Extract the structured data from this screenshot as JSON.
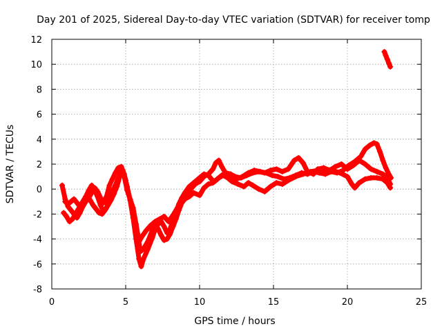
{
  "chart_data": {
    "type": "line",
    "title": "Day 201 of 2025, Sidereal Day-to-day VTEC variation (SDTVAR) for receiver tomp",
    "xlabel": "GPS time / hours",
    "ylabel": "SDTVAR / TECUs",
    "xlim": [
      0,
      25
    ],
    "ylim": [
      -8,
      12
    ],
    "xticks": [
      0,
      5,
      10,
      15,
      20,
      25
    ],
    "yticks": [
      -8,
      -6,
      -4,
      -2,
      0,
      2,
      4,
      6,
      8,
      10,
      12
    ],
    "grid": true,
    "marker": "+",
    "color": "#ff0000",
    "series": [
      {
        "name": "trace-1",
        "points": [
          [
            0.7,
            0.3
          ],
          [
            0.9,
            -0.8
          ],
          [
            1.1,
            -1.4
          ],
          [
            1.3,
            -1.7
          ],
          [
            1.5,
            -2.0
          ],
          [
            1.7,
            -2.3
          ],
          [
            1.9,
            -1.9
          ],
          [
            2.1,
            -1.4
          ],
          [
            2.3,
            -1.0
          ],
          [
            2.5,
            -0.7
          ],
          [
            2.7,
            -0.3
          ],
          [
            2.9,
            0.1
          ],
          [
            3.1,
            -0.2
          ],
          [
            3.3,
            -0.7
          ],
          [
            3.5,
            -1.1
          ],
          [
            3.7,
            -0.6
          ],
          [
            3.9,
            0.3
          ],
          [
            4.1,
            0.8
          ],
          [
            4.3,
            1.3
          ],
          [
            4.5,
            1.7
          ],
          [
            4.7,
            1.8
          ],
          [
            4.9,
            1.2
          ],
          [
            5.1,
            0.2
          ],
          [
            5.3,
            -0.9
          ],
          [
            5.5,
            -2.3
          ],
          [
            5.7,
            -4.0
          ],
          [
            5.9,
            -5.6
          ],
          [
            6.05,
            -6.2
          ],
          [
            6.2,
            -5.6
          ],
          [
            6.5,
            -4.8
          ],
          [
            6.8,
            -3.9
          ],
          [
            7.0,
            -3.2
          ],
          [
            7.2,
            -2.8
          ],
          [
            7.4,
            -2.6
          ],
          [
            7.6,
            -3.0
          ],
          [
            7.8,
            -3.5
          ],
          [
            8.0,
            -3.2
          ],
          [
            8.2,
            -2.5
          ],
          [
            8.4,
            -1.8
          ],
          [
            8.6,
            -1.2
          ],
          [
            8.8,
            -0.7
          ],
          [
            9.0,
            -0.3
          ],
          [
            9.3,
            0.2
          ],
          [
            9.6,
            0.5
          ],
          [
            10.0,
            0.9
          ],
          [
            10.3,
            1.2
          ],
          [
            10.6,
            1.1
          ],
          [
            10.8,
            0.8
          ],
          [
            11.0,
            0.6
          ],
          [
            11.3,
            0.9
          ],
          [
            11.6,
            1.1
          ],
          [
            11.9,
            0.9
          ],
          [
            12.2,
            0.6
          ],
          [
            12.6,
            0.4
          ],
          [
            13.0,
            0.2
          ],
          [
            13.3,
            0.5
          ],
          [
            13.6,
            0.3
          ],
          [
            14.0,
            0.0
          ],
          [
            14.4,
            -0.2
          ],
          [
            14.8,
            0.2
          ],
          [
            15.2,
            0.5
          ],
          [
            15.6,
            0.4
          ],
          [
            16.0,
            0.7
          ],
          [
            16.5,
            1.0
          ],
          [
            17.0,
            1.2
          ],
          [
            17.5,
            1.4
          ],
          [
            18.0,
            1.5
          ],
          [
            18.5,
            1.6
          ],
          [
            19.0,
            1.5
          ],
          [
            19.5,
            1.3
          ],
          [
            20.0,
            1.0
          ],
          [
            20.3,
            0.4
          ],
          [
            20.5,
            0.1
          ],
          [
            20.8,
            0.5
          ],
          [
            21.2,
            0.8
          ],
          [
            21.6,
            0.9
          ],
          [
            22.0,
            0.9
          ],
          [
            22.4,
            0.8
          ],
          [
            22.7,
            0.5
          ],
          [
            22.9,
            0.1
          ]
        ]
      },
      {
        "name": "trace-2",
        "points": [
          [
            0.8,
            -1.9
          ],
          [
            1.0,
            -2.2
          ],
          [
            1.2,
            -2.6
          ],
          [
            1.4,
            -2.4
          ],
          [
            1.6,
            -2.0
          ],
          [
            1.8,
            -1.6
          ],
          [
            2.0,
            -1.2
          ],
          [
            2.2,
            -0.9
          ],
          [
            2.4,
            -0.5
          ],
          [
            2.6,
            -0.9
          ],
          [
            2.8,
            -1.3
          ],
          [
            3.0,
            -1.6
          ],
          [
            3.2,
            -1.9
          ],
          [
            3.4,
            -2.0
          ],
          [
            3.6,
            -1.7
          ],
          [
            3.8,
            -1.3
          ],
          [
            4.0,
            -0.9
          ],
          [
            4.2,
            -0.4
          ],
          [
            4.4,
            0.2
          ],
          [
            4.6,
            1.0
          ],
          [
            4.8,
            1.5
          ],
          [
            5.0,
            0.7
          ],
          [
            5.2,
            -0.4
          ],
          [
            5.4,
            -1.3
          ],
          [
            5.6,
            -2.4
          ],
          [
            5.8,
            -3.6
          ],
          [
            6.0,
            -5.0
          ],
          [
            6.2,
            -4.8
          ],
          [
            6.5,
            -4.2
          ],
          [
            6.8,
            -3.3
          ],
          [
            7.0,
            -2.9
          ],
          [
            7.2,
            -3.2
          ],
          [
            7.4,
            -3.7
          ],
          [
            7.6,
            -4.1
          ],
          [
            7.8,
            -4.0
          ],
          [
            8.0,
            -3.6
          ],
          [
            8.2,
            -3.0
          ],
          [
            8.4,
            -2.4
          ],
          [
            8.6,
            -1.7
          ],
          [
            8.8,
            -1.1
          ],
          [
            9.0,
            -0.8
          ],
          [
            9.3,
            -0.6
          ],
          [
            9.6,
            -0.3
          ],
          [
            10.0,
            -0.5
          ],
          [
            10.3,
            0.1
          ],
          [
            10.6,
            0.4
          ],
          [
            10.9,
            0.5
          ],
          [
            11.2,
            0.8
          ],
          [
            11.5,
            1.1
          ],
          [
            11.8,
            1.3
          ],
          [
            12.1,
            1.2
          ],
          [
            12.4,
            1.0
          ],
          [
            12.8,
            0.9
          ],
          [
            13.2,
            1.1
          ],
          [
            13.6,
            1.3
          ],
          [
            14.0,
            1.4
          ],
          [
            14.4,
            1.3
          ],
          [
            14.8,
            1.5
          ],
          [
            15.2,
            1.6
          ],
          [
            15.6,
            1.4
          ],
          [
            16.0,
            1.6
          ],
          [
            16.4,
            2.3
          ],
          [
            16.7,
            2.5
          ],
          [
            17.0,
            2.1
          ],
          [
            17.3,
            1.4
          ],
          [
            17.7,
            1.2
          ],
          [
            18.0,
            1.6
          ],
          [
            18.4,
            1.7
          ],
          [
            18.8,
            1.5
          ],
          [
            19.2,
            1.8
          ],
          [
            19.6,
            2.0
          ],
          [
            20.0,
            1.6
          ],
          [
            20.4,
            1.9
          ],
          [
            20.8,
            2.3
          ],
          [
            21.2,
            2.0
          ],
          [
            21.6,
            1.6
          ],
          [
            22.0,
            1.4
          ],
          [
            22.4,
            1.2
          ],
          [
            22.7,
            0.9
          ],
          [
            22.9,
            0.4
          ]
        ]
      },
      {
        "name": "trace-3",
        "points": [
          [
            0.9,
            -1.0
          ],
          [
            1.1,
            -1.2
          ],
          [
            1.3,
            -1.0
          ],
          [
            1.5,
            -0.8
          ],
          [
            1.7,
            -1.1
          ],
          [
            1.9,
            -1.4
          ],
          [
            2.1,
            -1.0
          ],
          [
            2.3,
            -0.6
          ],
          [
            2.5,
            -0.1
          ],
          [
            2.7,
            0.3
          ],
          [
            2.9,
            -0.1
          ],
          [
            3.1,
            -0.6
          ],
          [
            3.3,
            -1.3
          ],
          [
            3.5,
            -1.8
          ],
          [
            3.7,
            -1.5
          ],
          [
            3.9,
            -0.7
          ],
          [
            4.1,
            -0.2
          ],
          [
            4.3,
            0.3
          ],
          [
            4.5,
            0.9
          ],
          [
            4.7,
            1.4
          ],
          [
            4.9,
            1.0
          ],
          [
            5.1,
            -0.1
          ],
          [
            5.3,
            -0.8
          ],
          [
            5.5,
            -1.5
          ],
          [
            5.7,
            -2.8
          ],
          [
            5.9,
            -4.2
          ],
          [
            6.1,
            -3.8
          ],
          [
            6.4,
            -3.3
          ],
          [
            6.7,
            -2.9
          ],
          [
            7.0,
            -2.6
          ],
          [
            7.3,
            -2.4
          ],
          [
            7.6,
            -2.2
          ],
          [
            7.9,
            -2.6
          ],
          [
            8.2,
            -2.1
          ],
          [
            8.5,
            -1.5
          ],
          [
            8.8,
            -0.9
          ],
          [
            9.1,
            -0.4
          ],
          [
            9.4,
            0.0
          ],
          [
            9.7,
            0.4
          ],
          [
            10.0,
            0.6
          ],
          [
            10.3,
            1.0
          ],
          [
            10.6,
            1.2
          ],
          [
            10.9,
            1.6
          ],
          [
            11.1,
            2.1
          ],
          [
            11.3,
            2.3
          ],
          [
            11.5,
            1.8
          ],
          [
            11.8,
            1.2
          ],
          [
            12.1,
            0.9
          ],
          [
            12.5,
            0.8
          ],
          [
            12.9,
            1.0
          ],
          [
            13.3,
            1.3
          ],
          [
            13.7,
            1.5
          ],
          [
            14.1,
            1.4
          ],
          [
            14.5,
            1.3
          ],
          [
            14.9,
            1.1
          ],
          [
            15.3,
            1.0
          ],
          [
            15.7,
            0.8
          ],
          [
            16.1,
            0.9
          ],
          [
            16.5,
            1.1
          ],
          [
            16.9,
            1.3
          ],
          [
            17.3,
            1.2
          ],
          [
            17.7,
            1.4
          ],
          [
            18.1,
            1.3
          ],
          [
            18.5,
            1.2
          ],
          [
            18.9,
            1.4
          ],
          [
            19.3,
            1.3
          ],
          [
            19.7,
            1.5
          ],
          [
            20.1,
            1.9
          ],
          [
            20.5,
            2.2
          ],
          [
            20.9,
            2.6
          ],
          [
            21.2,
            3.2
          ],
          [
            21.5,
            3.5
          ],
          [
            21.8,
            3.7
          ],
          [
            22.0,
            3.6
          ],
          [
            22.2,
            3.0
          ],
          [
            22.4,
            2.3
          ],
          [
            22.6,
            1.7
          ],
          [
            22.8,
            1.2
          ],
          [
            22.95,
            0.9
          ]
        ]
      },
      {
        "name": "trace-4",
        "points": [
          [
            22.5,
            11.0
          ],
          [
            22.6,
            10.7
          ],
          [
            22.7,
            10.4
          ],
          [
            22.8,
            10.1
          ],
          [
            22.9,
            9.8
          ]
        ]
      }
    ]
  }
}
